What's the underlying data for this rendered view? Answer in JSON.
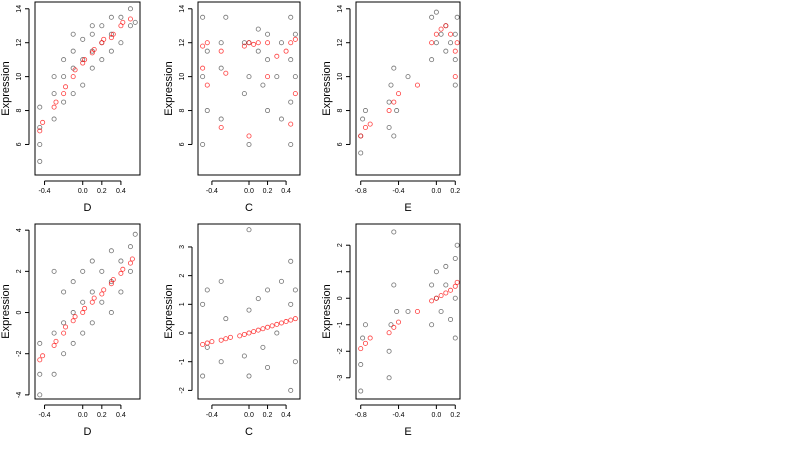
{
  "chart_data": [
    {
      "type": "scatter",
      "xlabel": "D",
      "ylabel": "Expression",
      "xlim": [
        -0.5,
        0.6
      ],
      "ylim": [
        4.2,
        14.4
      ],
      "xticks": [
        -0.4,
        0.0,
        0.2,
        0.4
      ],
      "xticklabels": [
        "-0.4",
        "0.0",
        "0.2",
        "0.4"
      ],
      "yticks": [
        6,
        8,
        10,
        12,
        14
      ],
      "yticklabels": [
        "6",
        "8",
        "10",
        "12",
        "14"
      ],
      "series": [
        {
          "role": "observed",
          "color": "#000000",
          "x": [
            -0.45,
            -0.45,
            -0.45,
            -0.45,
            -0.3,
            -0.3,
            -0.3,
            -0.2,
            -0.2,
            -0.2,
            -0.1,
            -0.1,
            -0.1,
            -0.1,
            0.0,
            0.0,
            0.0,
            0.1,
            0.1,
            0.1,
            0.1,
            0.2,
            0.2,
            0.2,
            0.3,
            0.3,
            0.3,
            0.4,
            0.4,
            0.5,
            0.5,
            0.55
          ],
          "y": [
            5.0,
            6.0,
            7.0,
            8.2,
            7.5,
            9.0,
            10.0,
            8.5,
            10.0,
            11.0,
            9.0,
            10.5,
            11.5,
            12.5,
            9.5,
            11.0,
            12.2,
            10.5,
            11.5,
            12.5,
            13.0,
            11.0,
            12.0,
            13.0,
            11.5,
            12.5,
            13.5,
            12.0,
            13.5,
            13.0,
            14.0,
            13.2
          ]
        },
        {
          "role": "fitted",
          "color": "#ff0000",
          "x": [
            -0.45,
            -0.42,
            -0.3,
            -0.28,
            -0.2,
            -0.18,
            -0.1,
            -0.08,
            0.0,
            0.02,
            0.1,
            0.12,
            0.2,
            0.22,
            0.3,
            0.32,
            0.4,
            0.42,
            0.5
          ],
          "y": [
            6.8,
            7.3,
            8.2,
            8.5,
            9.0,
            9.4,
            10.0,
            10.4,
            10.8,
            11.0,
            11.4,
            11.6,
            12.0,
            12.2,
            12.3,
            12.5,
            13.0,
            13.2,
            13.4
          ]
        }
      ]
    },
    {
      "type": "scatter",
      "xlabel": "C",
      "ylabel": "Expression",
      "xlim": [
        -0.55,
        0.55
      ],
      "ylim": [
        4.2,
        14.4
      ],
      "xticks": [
        -0.4,
        0.0,
        0.2,
        0.4
      ],
      "xticklabels": [
        "-0.4",
        "0.0",
        "0.2",
        "0.4"
      ],
      "yticks": [
        6,
        8,
        10,
        12,
        14
      ],
      "yticklabels": [
        "6",
        "8",
        "10",
        "12",
        "14"
      ],
      "series": [
        {
          "role": "observed",
          "color": "#000000",
          "x": [
            -0.5,
            -0.5,
            -0.5,
            -0.45,
            -0.45,
            -0.3,
            -0.3,
            -0.3,
            -0.25,
            -0.05,
            -0.05,
            0.0,
            0.0,
            0.0,
            0.1,
            0.1,
            0.15,
            0.2,
            0.2,
            0.2,
            0.3,
            0.35,
            0.35,
            0.45,
            0.45,
            0.45,
            0.45,
            0.5,
            0.5
          ],
          "y": [
            6.0,
            10.0,
            13.5,
            8.0,
            11.5,
            7.5,
            10.5,
            12.0,
            13.5,
            9.0,
            12.0,
            6.0,
            10.0,
            12.0,
            11.5,
            12.8,
            9.5,
            8.0,
            11.0,
            12.5,
            10.0,
            7.5,
            12.0,
            6.0,
            8.5,
            11.0,
            13.5,
            10.0,
            12.5
          ]
        },
        {
          "role": "fitted",
          "color": "#ff0000",
          "x": [
            -0.5,
            -0.5,
            -0.45,
            -0.45,
            -0.3,
            -0.3,
            -0.25,
            -0.05,
            0.0,
            0.0,
            0.05,
            0.1,
            0.2,
            0.2,
            0.3,
            0.4,
            0.45,
            0.45,
            0.5,
            0.5
          ],
          "y": [
            10.5,
            11.8,
            9.5,
            12.0,
            7.0,
            11.5,
            10.2,
            11.8,
            6.5,
            12.0,
            11.9,
            12.0,
            10.0,
            12.0,
            11.2,
            11.5,
            7.2,
            12.0,
            9.0,
            12.2
          ]
        }
      ]
    },
    {
      "type": "scatter",
      "xlabel": "E",
      "ylabel": "Expression",
      "xlim": [
        -0.85,
        0.25
      ],
      "ylim": [
        4.2,
        14.4
      ],
      "xticks": [
        -0.8,
        -0.4,
        0.0,
        0.2
      ],
      "xticklabels": [
        "-0.8",
        "-0.4",
        "0.0",
        "0.2"
      ],
      "yticks": [
        6,
        8,
        10,
        12,
        14
      ],
      "yticklabels": [
        "6",
        "8",
        "10",
        "12",
        "14"
      ],
      "series": [
        {
          "role": "observed",
          "color": "#000000",
          "x": [
            -0.8,
            -0.8,
            -0.78,
            -0.75,
            -0.5,
            -0.5,
            -0.48,
            -0.45,
            -0.45,
            -0.42,
            -0.3,
            -0.05,
            -0.05,
            0.0,
            0.0,
            0.05,
            0.1,
            0.1,
            0.15,
            0.2,
            0.2,
            0.2,
            0.22
          ],
          "y": [
            5.5,
            6.5,
            7.5,
            8.0,
            7.0,
            8.5,
            9.5,
            6.5,
            10.5,
            8.0,
            10.0,
            11.0,
            13.5,
            12.0,
            13.8,
            12.5,
            11.5,
            13.0,
            12.0,
            9.5,
            11.0,
            12.5,
            13.5
          ]
        },
        {
          "role": "fitted",
          "color": "#ff0000",
          "x": [
            -0.8,
            -0.75,
            -0.7,
            -0.5,
            -0.45,
            -0.4,
            -0.2,
            -0.05,
            0.0,
            0.05,
            0.1,
            0.15,
            0.2,
            0.2,
            0.22
          ],
          "y": [
            6.5,
            7.0,
            7.2,
            8.0,
            8.5,
            9.0,
            9.5,
            12.0,
            12.5,
            12.8,
            13.0,
            12.5,
            10.0,
            11.5,
            12.0
          ]
        }
      ]
    },
    {
      "type": "scatter",
      "xlabel": "D",
      "ylabel": "Expression",
      "xlim": [
        -0.5,
        0.6
      ],
      "ylim": [
        -4.2,
        4.3
      ],
      "xticks": [
        -0.4,
        0.0,
        0.2,
        0.4
      ],
      "xticklabels": [
        "-0.4",
        "0.0",
        "0.2",
        "0.4"
      ],
      "yticks": [
        -4,
        -2,
        0,
        2,
        4
      ],
      "yticklabels": [
        "-4",
        "-2",
        "0",
        "2",
        "4"
      ],
      "series": [
        {
          "role": "observed",
          "color": "#000000",
          "x": [
            -0.45,
            -0.45,
            -0.45,
            -0.3,
            -0.3,
            -0.3,
            -0.2,
            -0.2,
            -0.2,
            -0.1,
            -0.1,
            -0.1,
            0.0,
            0.0,
            0.0,
            0.1,
            0.1,
            0.1,
            0.2,
            0.2,
            0.3,
            0.3,
            0.3,
            0.4,
            0.4,
            0.5,
            0.5,
            0.55
          ],
          "y": [
            -4.0,
            -3.0,
            -1.5,
            -3.0,
            -1.0,
            2.0,
            -2.0,
            -0.5,
            1.0,
            -1.5,
            0.0,
            1.5,
            -1.0,
            0.5,
            2.0,
            -0.5,
            1.0,
            2.5,
            0.5,
            2.0,
            0.0,
            1.5,
            3.0,
            1.0,
            2.5,
            2.0,
            3.2,
            3.8
          ]
        },
        {
          "role": "fitted",
          "color": "#ff0000",
          "x": [
            -0.45,
            -0.42,
            -0.3,
            -0.28,
            -0.2,
            -0.18,
            -0.1,
            -0.08,
            0.0,
            0.02,
            0.1,
            0.12,
            0.2,
            0.22,
            0.3,
            0.32,
            0.4,
            0.42,
            0.5,
            0.52
          ],
          "y": [
            -2.3,
            -2.1,
            -1.6,
            -1.4,
            -1.0,
            -0.7,
            -0.4,
            -0.2,
            0.0,
            0.2,
            0.5,
            0.7,
            0.9,
            1.1,
            1.4,
            1.6,
            1.9,
            2.1,
            2.4,
            2.6
          ]
        }
      ]
    },
    {
      "type": "scatter",
      "xlabel": "C",
      "ylabel": "Expression",
      "xlim": [
        -0.55,
        0.55
      ],
      "ylim": [
        -2.3,
        3.8
      ],
      "xticks": [
        -0.4,
        0.0,
        0.2,
        0.4
      ],
      "xticklabels": [
        "-0.4",
        "0.0",
        "0.2",
        "0.4"
      ],
      "yticks": [
        -2,
        -1,
        0,
        1,
        2,
        3
      ],
      "yticklabels": [
        "-2",
        "-1",
        "0",
        "1",
        "2",
        "3"
      ],
      "series": [
        {
          "role": "observed",
          "color": "#000000",
          "x": [
            -0.5,
            -0.5,
            -0.45,
            -0.45,
            -0.3,
            -0.3,
            -0.25,
            -0.05,
            0.0,
            0.0,
            0.0,
            0.1,
            0.15,
            0.2,
            0.2,
            0.3,
            0.35,
            0.45,
            0.45,
            0.45,
            0.5,
            0.5
          ],
          "y": [
            -1.5,
            1.0,
            -0.5,
            1.5,
            1.8,
            -1.0,
            0.5,
            -0.8,
            3.6,
            -1.5,
            0.8,
            1.2,
            -0.5,
            1.5,
            -1.2,
            0.0,
            1.8,
            -2.0,
            1.0,
            2.5,
            -1.0,
            1.5
          ]
        },
        {
          "role": "fitted",
          "color": "#ff0000",
          "x": [
            -0.5,
            -0.45,
            -0.4,
            -0.3,
            -0.25,
            -0.2,
            -0.1,
            -0.05,
            0.0,
            0.05,
            0.1,
            0.15,
            0.2,
            0.25,
            0.3,
            0.35,
            0.4,
            0.45,
            0.5
          ],
          "y": [
            -0.4,
            -0.35,
            -0.3,
            -0.25,
            -0.2,
            -0.15,
            -0.1,
            -0.05,
            0.0,
            0.05,
            0.1,
            0.15,
            0.2,
            0.25,
            0.3,
            0.35,
            0.4,
            0.45,
            0.5
          ]
        }
      ]
    },
    {
      "type": "scatter",
      "xlabel": "E",
      "ylabel": "Expression",
      "xlim": [
        -0.85,
        0.25
      ],
      "ylim": [
        -3.8,
        2.8
      ],
      "xticks": [
        -0.8,
        -0.4,
        0.0,
        0.2
      ],
      "xticklabels": [
        "-0.8",
        "-0.4",
        "0.0",
        "0.2"
      ],
      "yticks": [
        -3,
        -2,
        -1,
        0,
        1,
        2
      ],
      "yticklabels": [
        "-3",
        "-2",
        "-1",
        "0",
        "1",
        "2"
      ],
      "series": [
        {
          "role": "observed",
          "color": "#000000",
          "x": [
            -0.8,
            -0.8,
            -0.78,
            -0.75,
            -0.5,
            -0.5,
            -0.48,
            -0.45,
            -0.45,
            -0.42,
            -0.3,
            -0.05,
            -0.05,
            0.0,
            0.0,
            0.05,
            0.1,
            0.1,
            0.15,
            0.2,
            0.2,
            0.2,
            0.22
          ],
          "y": [
            -3.5,
            -2.5,
            -1.5,
            -1.0,
            -3.0,
            -2.0,
            -1.0,
            0.5,
            2.5,
            -0.5,
            -0.5,
            -1.0,
            0.5,
            0.0,
            1.0,
            -0.5,
            0.5,
            1.2,
            -0.8,
            -1.5,
            0.0,
            1.5,
            2.0
          ]
        },
        {
          "role": "fitted",
          "color": "#ff0000",
          "x": [
            -0.8,
            -0.75,
            -0.7,
            -0.5,
            -0.45,
            -0.4,
            -0.2,
            -0.05,
            0.0,
            0.05,
            0.1,
            0.15,
            0.2,
            0.22
          ],
          "y": [
            -1.9,
            -1.7,
            -1.5,
            -1.3,
            -1.1,
            -0.9,
            -0.5,
            -0.1,
            0.0,
            0.1,
            0.2,
            0.3,
            0.45,
            0.6
          ]
        }
      ]
    }
  ]
}
